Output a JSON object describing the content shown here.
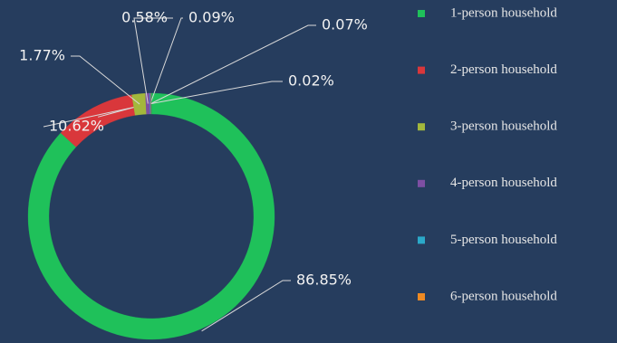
{
  "chart_data": {
    "type": "pie",
    "donut": true,
    "categories": [
      "1-person household",
      "2-person household",
      "3-person household",
      "4-person household",
      "5-person household",
      "6-person household",
      null
    ],
    "values": [
      86.85,
      10.62,
      1.77,
      0.58,
      0.09,
      0.07,
      0.02
    ],
    "value_labels": [
      "86.85%",
      "10.62%",
      "1.77%",
      "0.58%",
      "0.09%",
      "0.07%",
      "0.02%"
    ],
    "colors": [
      "#1fc15a",
      "#d9373b",
      "#a3b83c",
      "#7d4fa3",
      "#2ba9c9",
      "#ee8a22",
      "#2f5a8c"
    ],
    "legend": "right"
  }
}
